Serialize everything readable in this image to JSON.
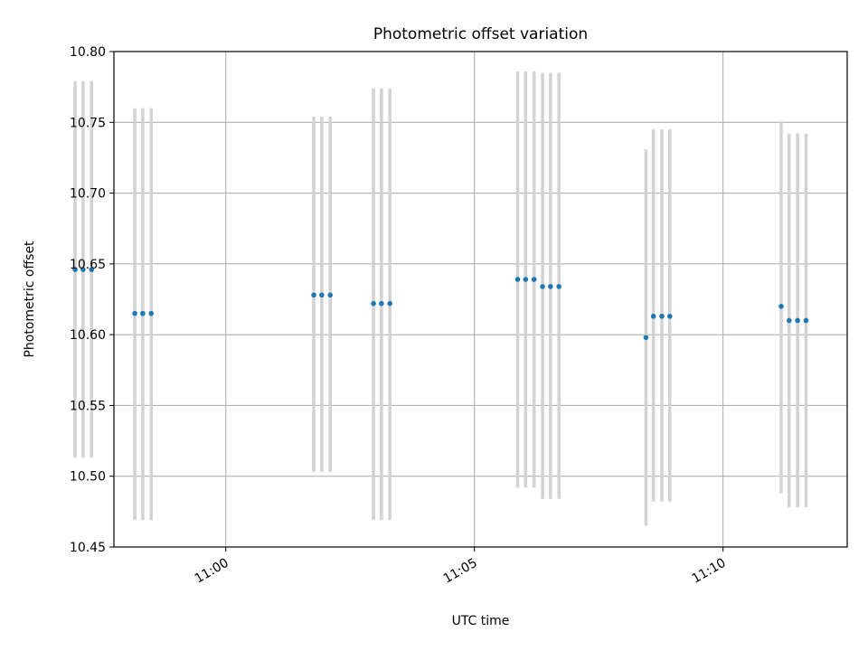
{
  "chart_data": {
    "type": "scatter",
    "title": "Photometric offset variation",
    "xlabel": "UTC time",
    "ylabel": "Photometric offset",
    "ylim": [
      10.45,
      10.8
    ],
    "xlim_minutes": [
      10.9625,
      11.2083
    ],
    "grid": true,
    "yticks": [
      10.45,
      10.5,
      10.55,
      10.6,
      10.65,
      10.7,
      10.75,
      10.8
    ],
    "ytick_labels": [
      "10.45",
      "10.50",
      "10.55",
      "10.60",
      "10.65",
      "10.70",
      "10.75",
      "10.80"
    ],
    "xticks": [
      {
        "value_minutes": 60,
        "label": "11:00"
      },
      {
        "value_minutes": 65,
        "label": "11:05"
      },
      {
        "value_minutes": 70,
        "label": "11:10"
      }
    ],
    "marker_color": "#1f77b4",
    "errorbar_color": "#d3d3d3",
    "points": [
      {
        "t": 56.97,
        "y": 10.646,
        "ylo": 10.513,
        "yhi": 10.779
      },
      {
        "t": 57.13,
        "y": 10.646,
        "ylo": 10.513,
        "yhi": 10.779
      },
      {
        "t": 57.3,
        "y": 10.646,
        "ylo": 10.513,
        "yhi": 10.779
      },
      {
        "t": 58.17,
        "y": 10.615,
        "ylo": 10.469,
        "yhi": 10.76
      },
      {
        "t": 58.33,
        "y": 10.615,
        "ylo": 10.469,
        "yhi": 10.76
      },
      {
        "t": 58.5,
        "y": 10.615,
        "ylo": 10.469,
        "yhi": 10.76
      },
      {
        "t": 61.77,
        "y": 10.628,
        "ylo": 10.503,
        "yhi": 10.754
      },
      {
        "t": 61.93,
        "y": 10.628,
        "ylo": 10.503,
        "yhi": 10.754
      },
      {
        "t": 62.1,
        "y": 10.628,
        "ylo": 10.503,
        "yhi": 10.754
      },
      {
        "t": 62.97,
        "y": 10.622,
        "ylo": 10.469,
        "yhi": 10.774
      },
      {
        "t": 63.13,
        "y": 10.622,
        "ylo": 10.469,
        "yhi": 10.774
      },
      {
        "t": 63.3,
        "y": 10.622,
        "ylo": 10.469,
        "yhi": 10.774
      },
      {
        "t": 65.87,
        "y": 10.639,
        "ylo": 10.492,
        "yhi": 10.786
      },
      {
        "t": 66.03,
        "y": 10.639,
        "ylo": 10.492,
        "yhi": 10.786
      },
      {
        "t": 66.2,
        "y": 10.639,
        "ylo": 10.492,
        "yhi": 10.786
      },
      {
        "t": 66.37,
        "y": 10.634,
        "ylo": 10.484,
        "yhi": 10.785
      },
      {
        "t": 66.53,
        "y": 10.634,
        "ylo": 10.484,
        "yhi": 10.785
      },
      {
        "t": 66.7,
        "y": 10.634,
        "ylo": 10.484,
        "yhi": 10.785
      },
      {
        "t": 68.45,
        "y": 10.598,
        "ylo": 10.465,
        "yhi": 10.731
      },
      {
        "t": 68.6,
        "y": 10.613,
        "ylo": 10.482,
        "yhi": 10.745
      },
      {
        "t": 68.77,
        "y": 10.613,
        "ylo": 10.482,
        "yhi": 10.745
      },
      {
        "t": 68.93,
        "y": 10.613,
        "ylo": 10.482,
        "yhi": 10.745
      },
      {
        "t": 71.17,
        "y": 10.62,
        "ylo": 10.488,
        "yhi": 10.751
      },
      {
        "t": 71.33,
        "y": 10.61,
        "ylo": 10.478,
        "yhi": 10.742
      },
      {
        "t": 71.5,
        "y": 10.61,
        "ylo": 10.478,
        "yhi": 10.742
      },
      {
        "t": 71.67,
        "y": 10.61,
        "ylo": 10.478,
        "yhi": 10.742
      }
    ]
  }
}
